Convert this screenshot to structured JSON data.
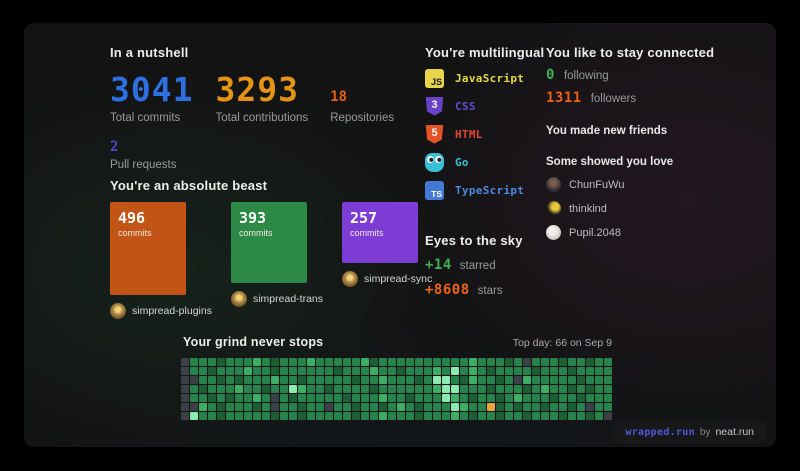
{
  "nutshell": {
    "title": "In a nutshell",
    "stats": [
      {
        "value": "3041",
        "label": "Total commits",
        "color": "#2e6fe2"
      },
      {
        "value": "3293",
        "label": "Total contributions",
        "color": "#e59312"
      },
      {
        "value": "18",
        "label": "Repositories",
        "color": "#e55f17"
      },
      {
        "value": "2",
        "label": "Pull requests",
        "color": "#4c46cc"
      }
    ]
  },
  "beast": {
    "title": "You're an absolute beast",
    "repos": [
      {
        "commits": "496",
        "unit": "commits",
        "name": "simpread-plugins",
        "color": "#c25415"
      },
      {
        "commits": "393",
        "unit": "commits",
        "name": "simpread-trans",
        "color": "#2c8a46"
      },
      {
        "commits": "257",
        "unit": "commits",
        "name": "simpread-sync",
        "color": "#7d3cd4"
      }
    ]
  },
  "multilingual": {
    "title": "You're multilingual",
    "languages": [
      {
        "name": "JavaScript",
        "badge": "JS",
        "color": "#e3d94e"
      },
      {
        "name": "CSS",
        "badge": "3",
        "color": "#5f4ed0"
      },
      {
        "name": "HTML",
        "badge": "5",
        "color": "#de4730"
      },
      {
        "name": "Go",
        "badge": "",
        "color": "#35c4d7"
      },
      {
        "name": "TypeScript",
        "badge": "TS",
        "color": "#4e8ce0"
      }
    ]
  },
  "sky": {
    "title": "Eyes to the sky",
    "items": [
      {
        "value": "+14",
        "label": "starred",
        "color": "#3fae54"
      },
      {
        "value": "+8608",
        "label": "stars",
        "color": "#ee6317"
      }
    ]
  },
  "connected": {
    "title": "You like to stay connected",
    "stats": [
      {
        "value": "0",
        "label": "following",
        "color": "#3fae54"
      },
      {
        "value": "1311",
        "label": "followers",
        "color": "#ee5f17"
      }
    ],
    "friends_title": "You made new friends",
    "love_title": "Some showed you love",
    "people": [
      {
        "name": "ChunFuWu"
      },
      {
        "name": "thinkind"
      },
      {
        "name": "Pupil.2048"
      }
    ]
  },
  "grind": {
    "title": "Your grind never stops",
    "top_day": "Top day: 66 on Sep 9",
    "heatmap": {
      "cols": 48,
      "palette": {
        "0": "#3b4046",
        "1": "#1d5e34",
        "2": "#27834b",
        "3": "#3dae63",
        "4": "#8ceab0",
        "T": "#eaa63a"
      },
      "rows": [
        "022212223212223222223122222222223222120222122122",
        "022122232212222221222322122232423212222122212222",
        "002212122232212222212232221244213221203222221222",
        "021222322122432212222122222234422212221232212122",
        "022121223202122222122232212224321221232221221222",
        "003212221202212202212212321222432 T1212212212022",
        "042212222212212222212232221222321221221222122120"
      ]
    }
  },
  "footer": {
    "brand": "wrapped.run",
    "by": "by",
    "site": "neat.run"
  }
}
